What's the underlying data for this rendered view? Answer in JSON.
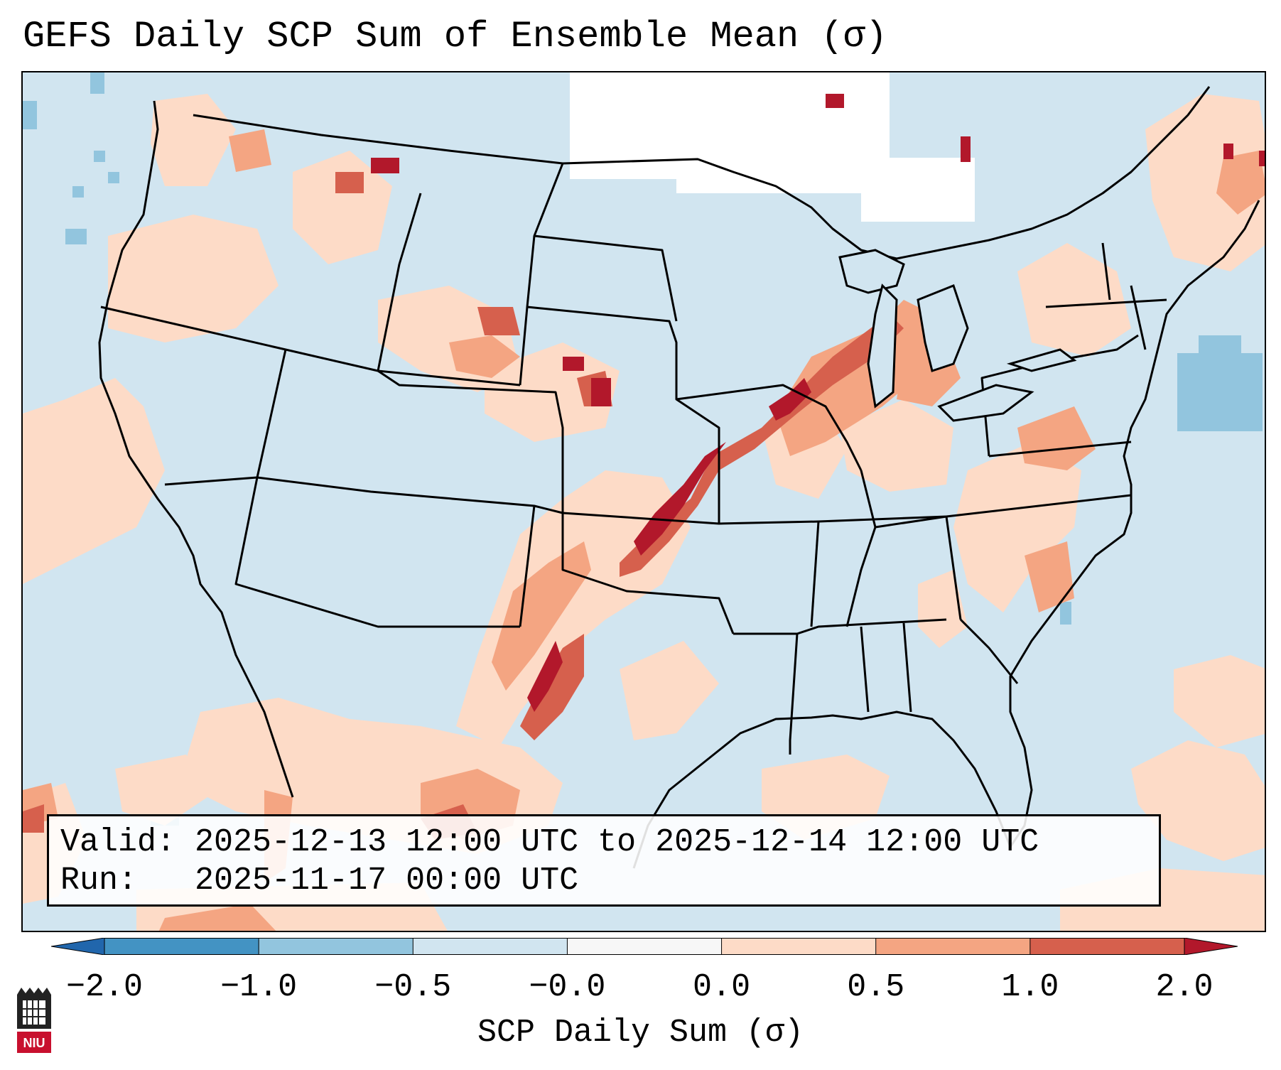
{
  "title": "GEFS Daily SCP Sum of Ensemble Mean (σ)",
  "info": {
    "valid_line": "Valid: 2025-12-13 12:00 UTC to 2025-12-14 12:00 UTC",
    "run_line": "Run:   2025-11-17 00:00 UTC"
  },
  "colorbar": {
    "label": "SCP Daily Sum (σ)",
    "ticks": [
      "−2.0",
      "−1.0",
      "−0.5",
      "−0.0",
      "0.0",
      "0.5",
      "1.0",
      "2.0"
    ],
    "colors": [
      "#4393c3",
      "#92c5de",
      "#d1e5f0",
      "#f7f7f7",
      "#fddbc7",
      "#f4a582",
      "#d6604d",
      "#b2182b"
    ],
    "extend_low_color": "#2166ac",
    "extend_high_color": "#b2182b"
  },
  "map": {
    "background_color": "#d1e5f0",
    "features": [
      {
        "name": "strong-axis-kansas-missouri-iowa-wisconsin",
        "level": "1.0 to 2.0"
      },
      {
        "name": "moderate-axis-texas-oklahoma",
        "level": "1.0 to 2.0"
      },
      {
        "name": "northern-mexico-region",
        "level": "0.0 to 1.0"
      },
      {
        "name": "carolinas-virginia-region",
        "level": "0.0 to 1.0"
      }
    ]
  },
  "logo": {
    "text": "NIU",
    "color": "#c8102e"
  }
}
